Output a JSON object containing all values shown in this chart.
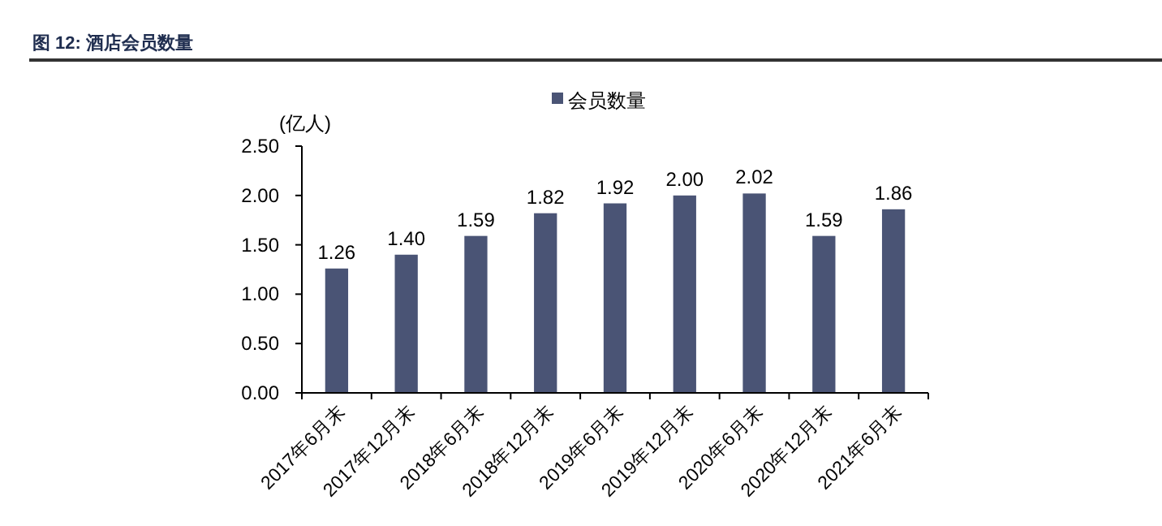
{
  "chart_data": {
    "type": "bar",
    "title": "图 12: 酒店会员数量",
    "ylabel": "(亿人)",
    "categories": [
      "2017年6月末",
      "2017年12月末",
      "2018年6月末",
      "2018年12月末",
      "2019年6月末",
      "2019年12月末",
      "2020年6月末",
      "2020年12月末",
      "2021年6月末"
    ],
    "series": [
      {
        "name": "会员数量",
        "color": "#4a5475",
        "values": [
          1.26,
          1.4,
          1.59,
          1.82,
          1.92,
          2.0,
          2.02,
          1.59,
          1.86
        ],
        "value_labels": [
          "1.26",
          "1.40",
          "1.59",
          "1.82",
          "1.92",
          "2.00",
          "2.02",
          "1.59",
          "1.86"
        ]
      }
    ],
    "ylim": [
      0,
      2.5
    ],
    "yticks": [
      {
        "value": 0,
        "label": "0.00"
      },
      {
        "value": 0.5,
        "label": "0.50"
      },
      {
        "value": 1,
        "label": "1.00"
      },
      {
        "value": 1.5,
        "label": "1.50"
      },
      {
        "value": 2,
        "label": "2.00"
      },
      {
        "value": 2.5,
        "label": "2.50"
      }
    ],
    "legend": "top",
    "grid": false
  }
}
